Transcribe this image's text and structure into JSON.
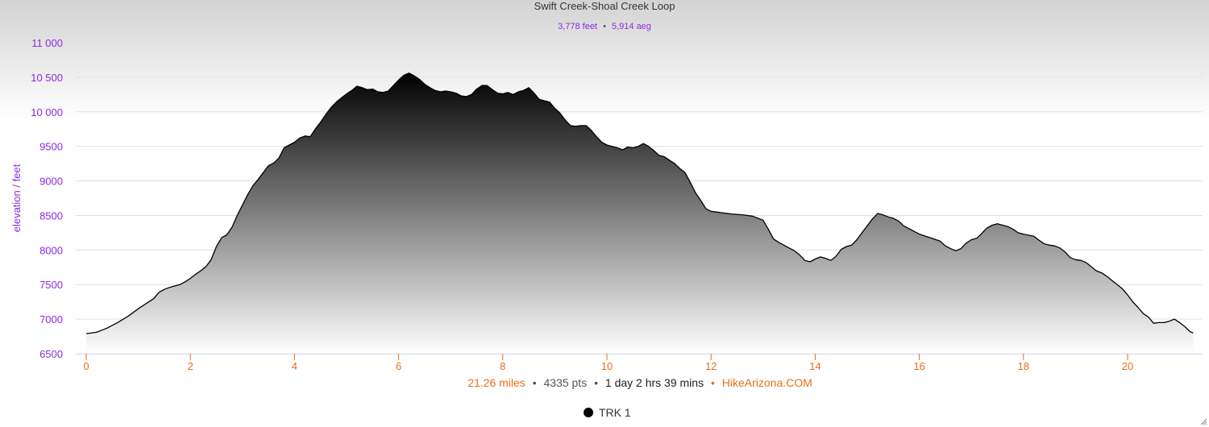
{
  "chart_data": {
    "type": "area",
    "title": "Swift Creek-Shoal Creek Loop",
    "subtitle": {
      "elevation": "3,778 feet",
      "separator": "•",
      "aeg": "5,914 aeg"
    },
    "ylabel": "elevation / feet",
    "xlabel": "",
    "ylim": [
      6500,
      11000
    ],
    "xlim": [
      0,
      21.26
    ],
    "yticks": [
      6500,
      7000,
      7500,
      8000,
      8500,
      9000,
      9500,
      10000,
      10500,
      11000
    ],
    "ytick_labels": [
      "6500",
      "7000",
      "7500",
      "8000",
      "8500",
      "9000",
      "9500",
      "10 000",
      "10 500",
      "11 000"
    ],
    "xticks": [
      0,
      2,
      4,
      6,
      8,
      10,
      12,
      14,
      16,
      18,
      20
    ],
    "xtick_labels": [
      "0",
      "2",
      "4",
      "6",
      "8",
      "10",
      "12",
      "14",
      "16",
      "18",
      "20"
    ],
    "grid": true,
    "legend_position": "bottom-center",
    "series": [
      {
        "name": "TRK 1",
        "points": [
          [
            0,
            6790
          ],
          [
            0.2,
            6810
          ],
          [
            0.4,
            6870
          ],
          [
            0.6,
            6950
          ],
          [
            0.8,
            7040
          ],
          [
            1.0,
            7150
          ],
          [
            1.2,
            7250
          ],
          [
            1.3,
            7300
          ],
          [
            1.4,
            7390
          ],
          [
            1.5,
            7430
          ],
          [
            1.6,
            7460
          ],
          [
            1.7,
            7480
          ],
          [
            1.8,
            7500
          ],
          [
            1.9,
            7540
          ],
          [
            2.0,
            7590
          ],
          [
            2.1,
            7650
          ],
          [
            2.2,
            7700
          ],
          [
            2.3,
            7760
          ],
          [
            2.4,
            7860
          ],
          [
            2.5,
            8050
          ],
          [
            2.6,
            8180
          ],
          [
            2.7,
            8220
          ],
          [
            2.8,
            8330
          ],
          [
            2.9,
            8500
          ],
          [
            3.0,
            8650
          ],
          [
            3.1,
            8800
          ],
          [
            3.2,
            8930
          ],
          [
            3.3,
            9020
          ],
          [
            3.4,
            9120
          ],
          [
            3.5,
            9220
          ],
          [
            3.6,
            9260
          ],
          [
            3.7,
            9330
          ],
          [
            3.8,
            9480
          ],
          [
            3.9,
            9520
          ],
          [
            4.0,
            9560
          ],
          [
            4.1,
            9620
          ],
          [
            4.2,
            9650
          ],
          [
            4.3,
            9640
          ],
          [
            4.4,
            9750
          ],
          [
            4.5,
            9850
          ],
          [
            4.6,
            9960
          ],
          [
            4.7,
            10060
          ],
          [
            4.8,
            10140
          ],
          [
            4.9,
            10200
          ],
          [
            5.0,
            10260
          ],
          [
            5.1,
            10310
          ],
          [
            5.2,
            10370
          ],
          [
            5.3,
            10350
          ],
          [
            5.4,
            10320
          ],
          [
            5.5,
            10330
          ],
          [
            5.6,
            10290
          ],
          [
            5.7,
            10280
          ],
          [
            5.8,
            10300
          ],
          [
            5.9,
            10380
          ],
          [
            6.0,
            10460
          ],
          [
            6.1,
            10530
          ],
          [
            6.2,
            10560
          ],
          [
            6.3,
            10520
          ],
          [
            6.4,
            10470
          ],
          [
            6.5,
            10400
          ],
          [
            6.6,
            10350
          ],
          [
            6.7,
            10310
          ],
          [
            6.8,
            10290
          ],
          [
            6.9,
            10300
          ],
          [
            7.0,
            10290
          ],
          [
            7.1,
            10270
          ],
          [
            7.2,
            10230
          ],
          [
            7.3,
            10220
          ],
          [
            7.4,
            10250
          ],
          [
            7.5,
            10330
          ],
          [
            7.6,
            10380
          ],
          [
            7.7,
            10380
          ],
          [
            7.8,
            10320
          ],
          [
            7.9,
            10270
          ],
          [
            8.0,
            10260
          ],
          [
            8.1,
            10280
          ],
          [
            8.2,
            10250
          ],
          [
            8.3,
            10290
          ],
          [
            8.4,
            10310
          ],
          [
            8.5,
            10350
          ],
          [
            8.6,
            10270
          ],
          [
            8.7,
            10180
          ],
          [
            8.8,
            10160
          ],
          [
            8.9,
            10140
          ],
          [
            9.0,
            10050
          ],
          [
            9.1,
            9980
          ],
          [
            9.2,
            9880
          ],
          [
            9.3,
            9800
          ],
          [
            9.4,
            9790
          ],
          [
            9.5,
            9800
          ],
          [
            9.6,
            9800
          ],
          [
            9.7,
            9730
          ],
          [
            9.8,
            9640
          ],
          [
            9.9,
            9560
          ],
          [
            10.0,
            9520
          ],
          [
            10.1,
            9500
          ],
          [
            10.2,
            9480
          ],
          [
            10.3,
            9450
          ],
          [
            10.4,
            9490
          ],
          [
            10.5,
            9480
          ],
          [
            10.6,
            9500
          ],
          [
            10.7,
            9540
          ],
          [
            10.8,
            9500
          ],
          [
            10.9,
            9440
          ],
          [
            11.0,
            9370
          ],
          [
            11.1,
            9350
          ],
          [
            11.2,
            9300
          ],
          [
            11.3,
            9250
          ],
          [
            11.4,
            9180
          ],
          [
            11.5,
            9120
          ],
          [
            11.6,
            8980
          ],
          [
            11.7,
            8830
          ],
          [
            11.8,
            8720
          ],
          [
            11.9,
            8600
          ],
          [
            12.0,
            8560
          ],
          [
            12.2,
            8540
          ],
          [
            12.4,
            8520
          ],
          [
            12.6,
            8510
          ],
          [
            12.8,
            8490
          ],
          [
            13.0,
            8430
          ],
          [
            13.1,
            8300
          ],
          [
            13.2,
            8160
          ],
          [
            13.3,
            8110
          ],
          [
            13.4,
            8070
          ],
          [
            13.5,
            8030
          ],
          [
            13.6,
            7990
          ],
          [
            13.7,
            7930
          ],
          [
            13.8,
            7850
          ],
          [
            13.9,
            7830
          ],
          [
            14.0,
            7870
          ],
          [
            14.1,
            7900
          ],
          [
            14.2,
            7880
          ],
          [
            14.3,
            7850
          ],
          [
            14.4,
            7910
          ],
          [
            14.5,
            8010
          ],
          [
            14.6,
            8050
          ],
          [
            14.7,
            8070
          ],
          [
            14.8,
            8150
          ],
          [
            14.9,
            8250
          ],
          [
            15.0,
            8350
          ],
          [
            15.1,
            8450
          ],
          [
            15.2,
            8530
          ],
          [
            15.3,
            8510
          ],
          [
            15.4,
            8480
          ],
          [
            15.5,
            8460
          ],
          [
            15.6,
            8420
          ],
          [
            15.7,
            8350
          ],
          [
            15.8,
            8310
          ],
          [
            15.9,
            8270
          ],
          [
            16.0,
            8230
          ],
          [
            16.2,
            8180
          ],
          [
            16.4,
            8130
          ],
          [
            16.5,
            8060
          ],
          [
            16.6,
            8020
          ],
          [
            16.7,
            7990
          ],
          [
            16.8,
            8020
          ],
          [
            16.9,
            8100
          ],
          [
            17.0,
            8150
          ],
          [
            17.1,
            8170
          ],
          [
            17.2,
            8240
          ],
          [
            17.3,
            8320
          ],
          [
            17.4,
            8360
          ],
          [
            17.5,
            8380
          ],
          [
            17.6,
            8360
          ],
          [
            17.7,
            8340
          ],
          [
            17.8,
            8300
          ],
          [
            17.9,
            8250
          ],
          [
            18.0,
            8230
          ],
          [
            18.2,
            8200
          ],
          [
            18.3,
            8140
          ],
          [
            18.4,
            8090
          ],
          [
            18.5,
            8070
          ],
          [
            18.6,
            8060
          ],
          [
            18.7,
            8030
          ],
          [
            18.8,
            7970
          ],
          [
            18.9,
            7890
          ],
          [
            19.0,
            7860
          ],
          [
            19.1,
            7850
          ],
          [
            19.2,
            7820
          ],
          [
            19.3,
            7760
          ],
          [
            19.4,
            7700
          ],
          [
            19.5,
            7670
          ],
          [
            19.6,
            7620
          ],
          [
            19.7,
            7560
          ],
          [
            19.8,
            7500
          ],
          [
            19.9,
            7440
          ],
          [
            20.0,
            7350
          ],
          [
            20.1,
            7250
          ],
          [
            20.2,
            7170
          ],
          [
            20.3,
            7080
          ],
          [
            20.4,
            7030
          ],
          [
            20.5,
            6940
          ],
          [
            20.6,
            6950
          ],
          [
            20.7,
            6950
          ],
          [
            20.8,
            6970
          ],
          [
            20.9,
            7000
          ],
          [
            21.0,
            6950
          ],
          [
            21.1,
            6890
          ],
          [
            21.2,
            6820
          ],
          [
            21.26,
            6800
          ]
        ]
      }
    ],
    "caption": {
      "distance": "21.26 miles",
      "points": "4335 pts",
      "duration": "1 day 2 hrs 39 mins",
      "site": "HikeArizona.COM",
      "separator": "•"
    }
  },
  "colors": {
    "axis_text_purple": "#8b2be2",
    "axis_text_orange": "#e8701a",
    "caption_gray": "#555555",
    "line_black": "#000000",
    "fill_top": "#000000",
    "fill_bottom": "#ffffff",
    "gridline": "#e0e0e0"
  },
  "icons": {
    "legend_marker": "filled-circle",
    "resize_handle": "resize-grip-icon"
  }
}
